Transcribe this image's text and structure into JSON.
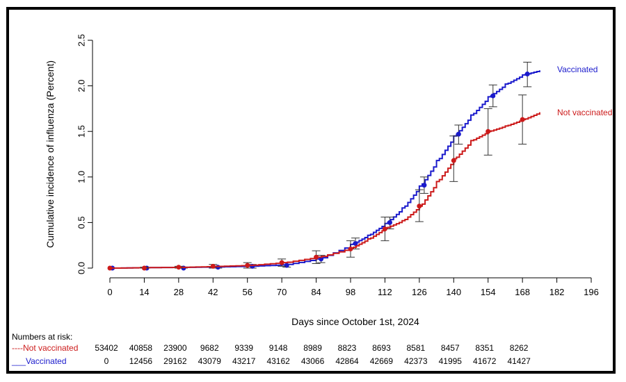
{
  "chart_data": {
    "type": "line",
    "xlabel": "Days since October 1st, 2024",
    "ylabel": "Cumulative incidence of influenza (Percent)",
    "x_ticks": [
      0,
      14,
      28,
      42,
      56,
      70,
      84,
      98,
      112,
      126,
      140,
      154,
      168,
      182,
      196
    ],
    "y_ticks": [
      0.0,
      0.5,
      1.0,
      1.5,
      2.0,
      2.5
    ],
    "y_tick_labels": [
      "0.0",
      "0.5",
      "1.0",
      "1.5",
      "2.0",
      "2.5"
    ],
    "xlim": [
      0,
      196
    ],
    "ylim": [
      0,
      2.5
    ],
    "grid": false,
    "series": [
      {
        "name": "Vaccinated",
        "color": "#1a1acc",
        "curve": [
          [
            0,
            0
          ],
          [
            14,
            0.005
          ],
          [
            28,
            0.008
          ],
          [
            42,
            0.012
          ],
          [
            56,
            0.02
          ],
          [
            70,
            0.035
          ],
          [
            84,
            0.1
          ],
          [
            98,
            0.26
          ],
          [
            105,
            0.36
          ],
          [
            112,
            0.49
          ],
          [
            119,
            0.66
          ],
          [
            126,
            0.9
          ],
          [
            133,
            1.18
          ],
          [
            140,
            1.45
          ],
          [
            147,
            1.68
          ],
          [
            154,
            1.88
          ],
          [
            161,
            2.02
          ],
          [
            168,
            2.12
          ],
          [
            175,
            2.17
          ]
        ],
        "markers": [
          {
            "x": 1,
            "y": 0.0,
            "lo": 0.0,
            "hi": 0.0
          },
          {
            "x": 15,
            "y": 0.0,
            "lo": 0.0,
            "hi": 0.0
          },
          {
            "x": 30,
            "y": 0.0,
            "lo": 0.0,
            "hi": 0.01
          },
          {
            "x": 44,
            "y": 0.01,
            "lo": 0.0,
            "hi": 0.02
          },
          {
            "x": 58,
            "y": 0.02,
            "lo": 0.0,
            "hi": 0.04
          },
          {
            "x": 72,
            "y": 0.03,
            "lo": 0.01,
            "hi": 0.06
          },
          {
            "x": 86,
            "y": 0.1,
            "lo": 0.06,
            "hi": 0.14
          },
          {
            "x": 100,
            "y": 0.27,
            "lo": 0.21,
            "hi": 0.33
          },
          {
            "x": 114,
            "y": 0.5,
            "lo": 0.43,
            "hi": 0.56
          },
          {
            "x": 128,
            "y": 0.91,
            "lo": 0.82,
            "hi": 1.0
          },
          {
            "x": 142,
            "y": 1.47,
            "lo": 1.36,
            "hi": 1.57
          },
          {
            "x": 156,
            "y": 1.89,
            "lo": 1.77,
            "hi": 2.01
          },
          {
            "x": 170,
            "y": 2.13,
            "lo": 1.99,
            "hi": 2.26
          }
        ]
      },
      {
        "name": "Not vaccinated",
        "color": "#cc1a1a",
        "curve": [
          [
            0,
            0
          ],
          [
            14,
            0.005
          ],
          [
            28,
            0.008
          ],
          [
            42,
            0.018
          ],
          [
            56,
            0.03
          ],
          [
            70,
            0.06
          ],
          [
            84,
            0.12
          ],
          [
            98,
            0.22
          ],
          [
            105,
            0.32
          ],
          [
            112,
            0.44
          ],
          [
            119,
            0.52
          ],
          [
            126,
            0.68
          ],
          [
            133,
            0.95
          ],
          [
            140,
            1.2
          ],
          [
            147,
            1.4
          ],
          [
            154,
            1.5
          ],
          [
            161,
            1.56
          ],
          [
            168,
            1.63
          ],
          [
            175,
            1.71
          ]
        ],
        "markers": [
          {
            "x": 0,
            "y": 0.0,
            "lo": 0.0,
            "hi": 0.0
          },
          {
            "x": 14,
            "y": 0.0,
            "lo": 0.0,
            "hi": 0.01
          },
          {
            "x": 28,
            "y": 0.01,
            "lo": 0.0,
            "hi": 0.02
          },
          {
            "x": 42,
            "y": 0.02,
            "lo": 0.0,
            "hi": 0.04
          },
          {
            "x": 56,
            "y": 0.03,
            "lo": 0.0,
            "hi": 0.06
          },
          {
            "x": 70,
            "y": 0.06,
            "lo": 0.02,
            "hi": 0.1
          },
          {
            "x": 84,
            "y": 0.12,
            "lo": 0.05,
            "hi": 0.19
          },
          {
            "x": 98,
            "y": 0.21,
            "lo": 0.12,
            "hi": 0.3
          },
          {
            "x": 112,
            "y": 0.43,
            "lo": 0.3,
            "hi": 0.56
          },
          {
            "x": 126,
            "y": 0.68,
            "lo": 0.51,
            "hi": 0.86
          },
          {
            "x": 140,
            "y": 1.18,
            "lo": 0.95,
            "hi": 1.45
          },
          {
            "x": 154,
            "y": 1.5,
            "lo": 1.24,
            "hi": 1.75
          },
          {
            "x": 168,
            "y": 1.63,
            "lo": 1.36,
            "hi": 1.9
          }
        ]
      }
    ],
    "line_labels": [
      "Vaccinated",
      "Not vaccinated"
    ],
    "risk_table": {
      "title": "Numbers at risk:",
      "rows": [
        {
          "label": "----Not vaccinated",
          "color": "#cc1a1a",
          "values": [
            "53402",
            "40858",
            "23900",
            "9682",
            "9339",
            "9148",
            "8989",
            "8823",
            "8693",
            "8581",
            "8457",
            "8351",
            "8262"
          ]
        },
        {
          "label": "___Vaccinated",
          "color": "#1a1acc",
          "values": [
            "0",
            "12456",
            "29162",
            "43079",
            "43217",
            "43162",
            "43066",
            "42864",
            "42669",
            "42373",
            "41995",
            "41672",
            "41427"
          ]
        }
      ]
    }
  }
}
